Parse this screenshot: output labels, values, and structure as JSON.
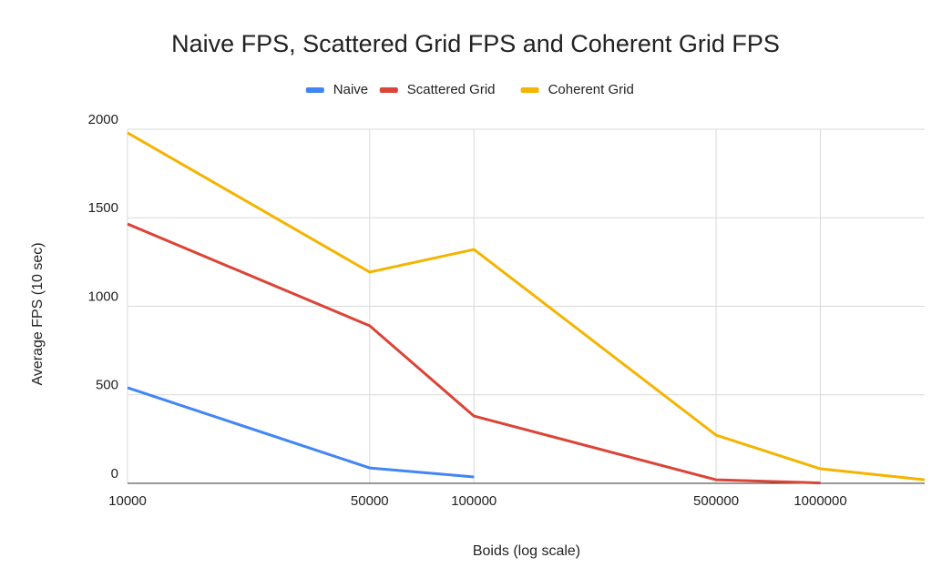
{
  "chart_data": {
    "type": "line",
    "title": "Naive FPS, Scattered Grid FPS and Coherent Grid FPS",
    "x_label": "Boids (log scale)",
    "y_label": "Average FPS (10 sec)",
    "x": [
      10000,
      50000,
      100000,
      500000,
      1000000,
      2000000
    ],
    "series": [
      {
        "name": "Naive",
        "color": "#4285f4",
        "values": [
          540,
          87,
          36,
          null,
          null,
          null
        ]
      },
      {
        "name": "Scattered Grid",
        "color": "#db4437",
        "values": [
          1465,
          890,
          380,
          20,
          2,
          null
        ]
      },
      {
        "name": "Coherent Grid",
        "color": "#f4b400",
        "values": [
          1980,
          1193,
          1321,
          272,
          82,
          20
        ]
      }
    ],
    "xscale": "log",
    "xlim": [
      10000,
      2000000
    ],
    "xticks": [
      10000,
      50000,
      100000,
      500000,
      1000000
    ],
    "ylim": [
      0,
      2000
    ],
    "yticks": [
      0,
      500,
      1000,
      1500,
      2000
    ],
    "grid": true,
    "legend": "top"
  }
}
